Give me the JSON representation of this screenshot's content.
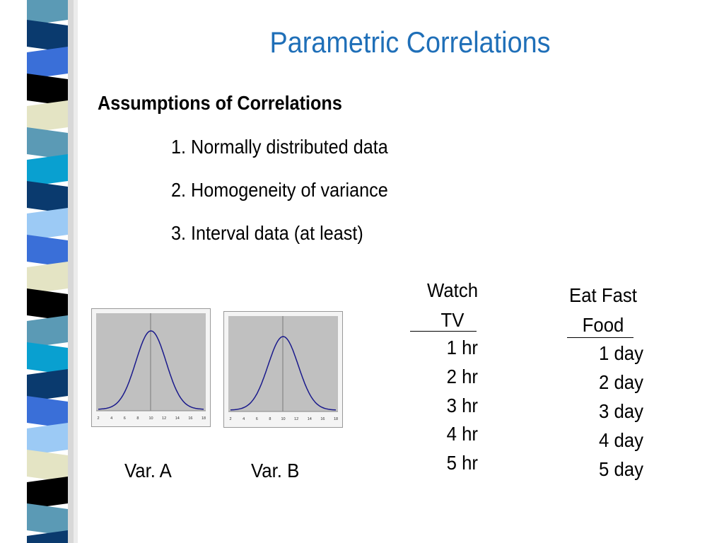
{
  "slide": {
    "title": "Parametric Correlations",
    "heading": "Assumptions of Correlations",
    "assumptions": [
      "1.  Normally distributed data",
      "2.  Homogeneity of variance",
      "3.  Interval data (at least)"
    ]
  },
  "distributions": [
    {
      "label": "Var. A",
      "ticks": [
        "2",
        "4",
        "6",
        "8",
        "10",
        "12",
        "14",
        "16",
        "18"
      ]
    },
    {
      "label": "Var. B",
      "ticks": [
        "2",
        "4",
        "6",
        "8",
        "10",
        "12",
        "14",
        "16",
        "18"
      ]
    }
  ],
  "table": {
    "watch_tv": {
      "header_line1": "Watch",
      "header_line2": "TV",
      "values": [
        "1 hr",
        "2 hr",
        "3 hr",
        "4 hr",
        "5 hr"
      ]
    },
    "eat_fast_food": {
      "header_line1": "Eat Fast",
      "header_line2": "Food",
      "values": [
        "1 day",
        "2 day",
        "3 day",
        "4 day",
        "5 day"
      ]
    }
  },
  "colors": {
    "title": "#1f6fb8",
    "curve": "#1a1a8c",
    "plot_bg": "#c0c0c0",
    "stripe_palette": [
      "#5b9ab5",
      "#0a3a6e",
      "#3a6fd8",
      "#000000",
      "#e4e4c4",
      "#09a0d0",
      "#9ccaf5"
    ]
  }
}
